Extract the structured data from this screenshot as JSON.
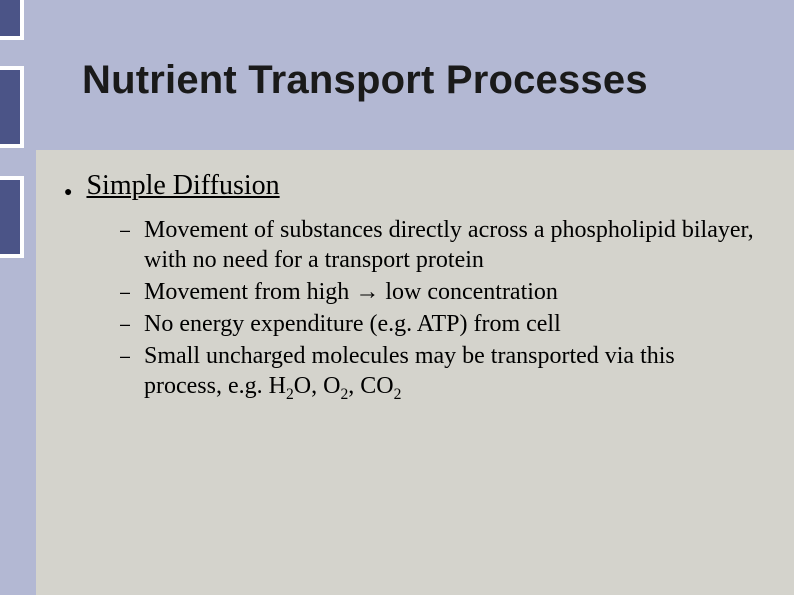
{
  "colors": {
    "header_band": "#b3b8d3",
    "body_bg": "#d4d3cc",
    "notch_fill": "#4b5487",
    "notch_border": "#ffffff",
    "text": "#000000",
    "title_text": "#1a1a1a"
  },
  "typography": {
    "title_font": "Arial",
    "title_size_pt": 30,
    "title_weight": "bold",
    "body_font": "Times New Roman",
    "heading_size_pt": 21,
    "sub_size_pt": 18
  },
  "title": "Nutrient Transport Processes",
  "heading": "Simple Diffusion",
  "sub_points": [
    {
      "html": "Movement of substances directly across a phospholipid bilayer, with no need for a transport protein"
    },
    {
      "html": "Movement from high <span class=\"arrow\">&#x2192;</span> low concentration"
    },
    {
      "html": "No energy expenditure (e.g. ATP) from cell"
    },
    {
      "html": "Small uncharged molecules may be transported via this process, e.g. H<sub>2</sub>O, O<sub>2</sub>, CO<sub>2</sub>"
    }
  ],
  "bullet_glyph": "●",
  "dash_glyph": "–"
}
